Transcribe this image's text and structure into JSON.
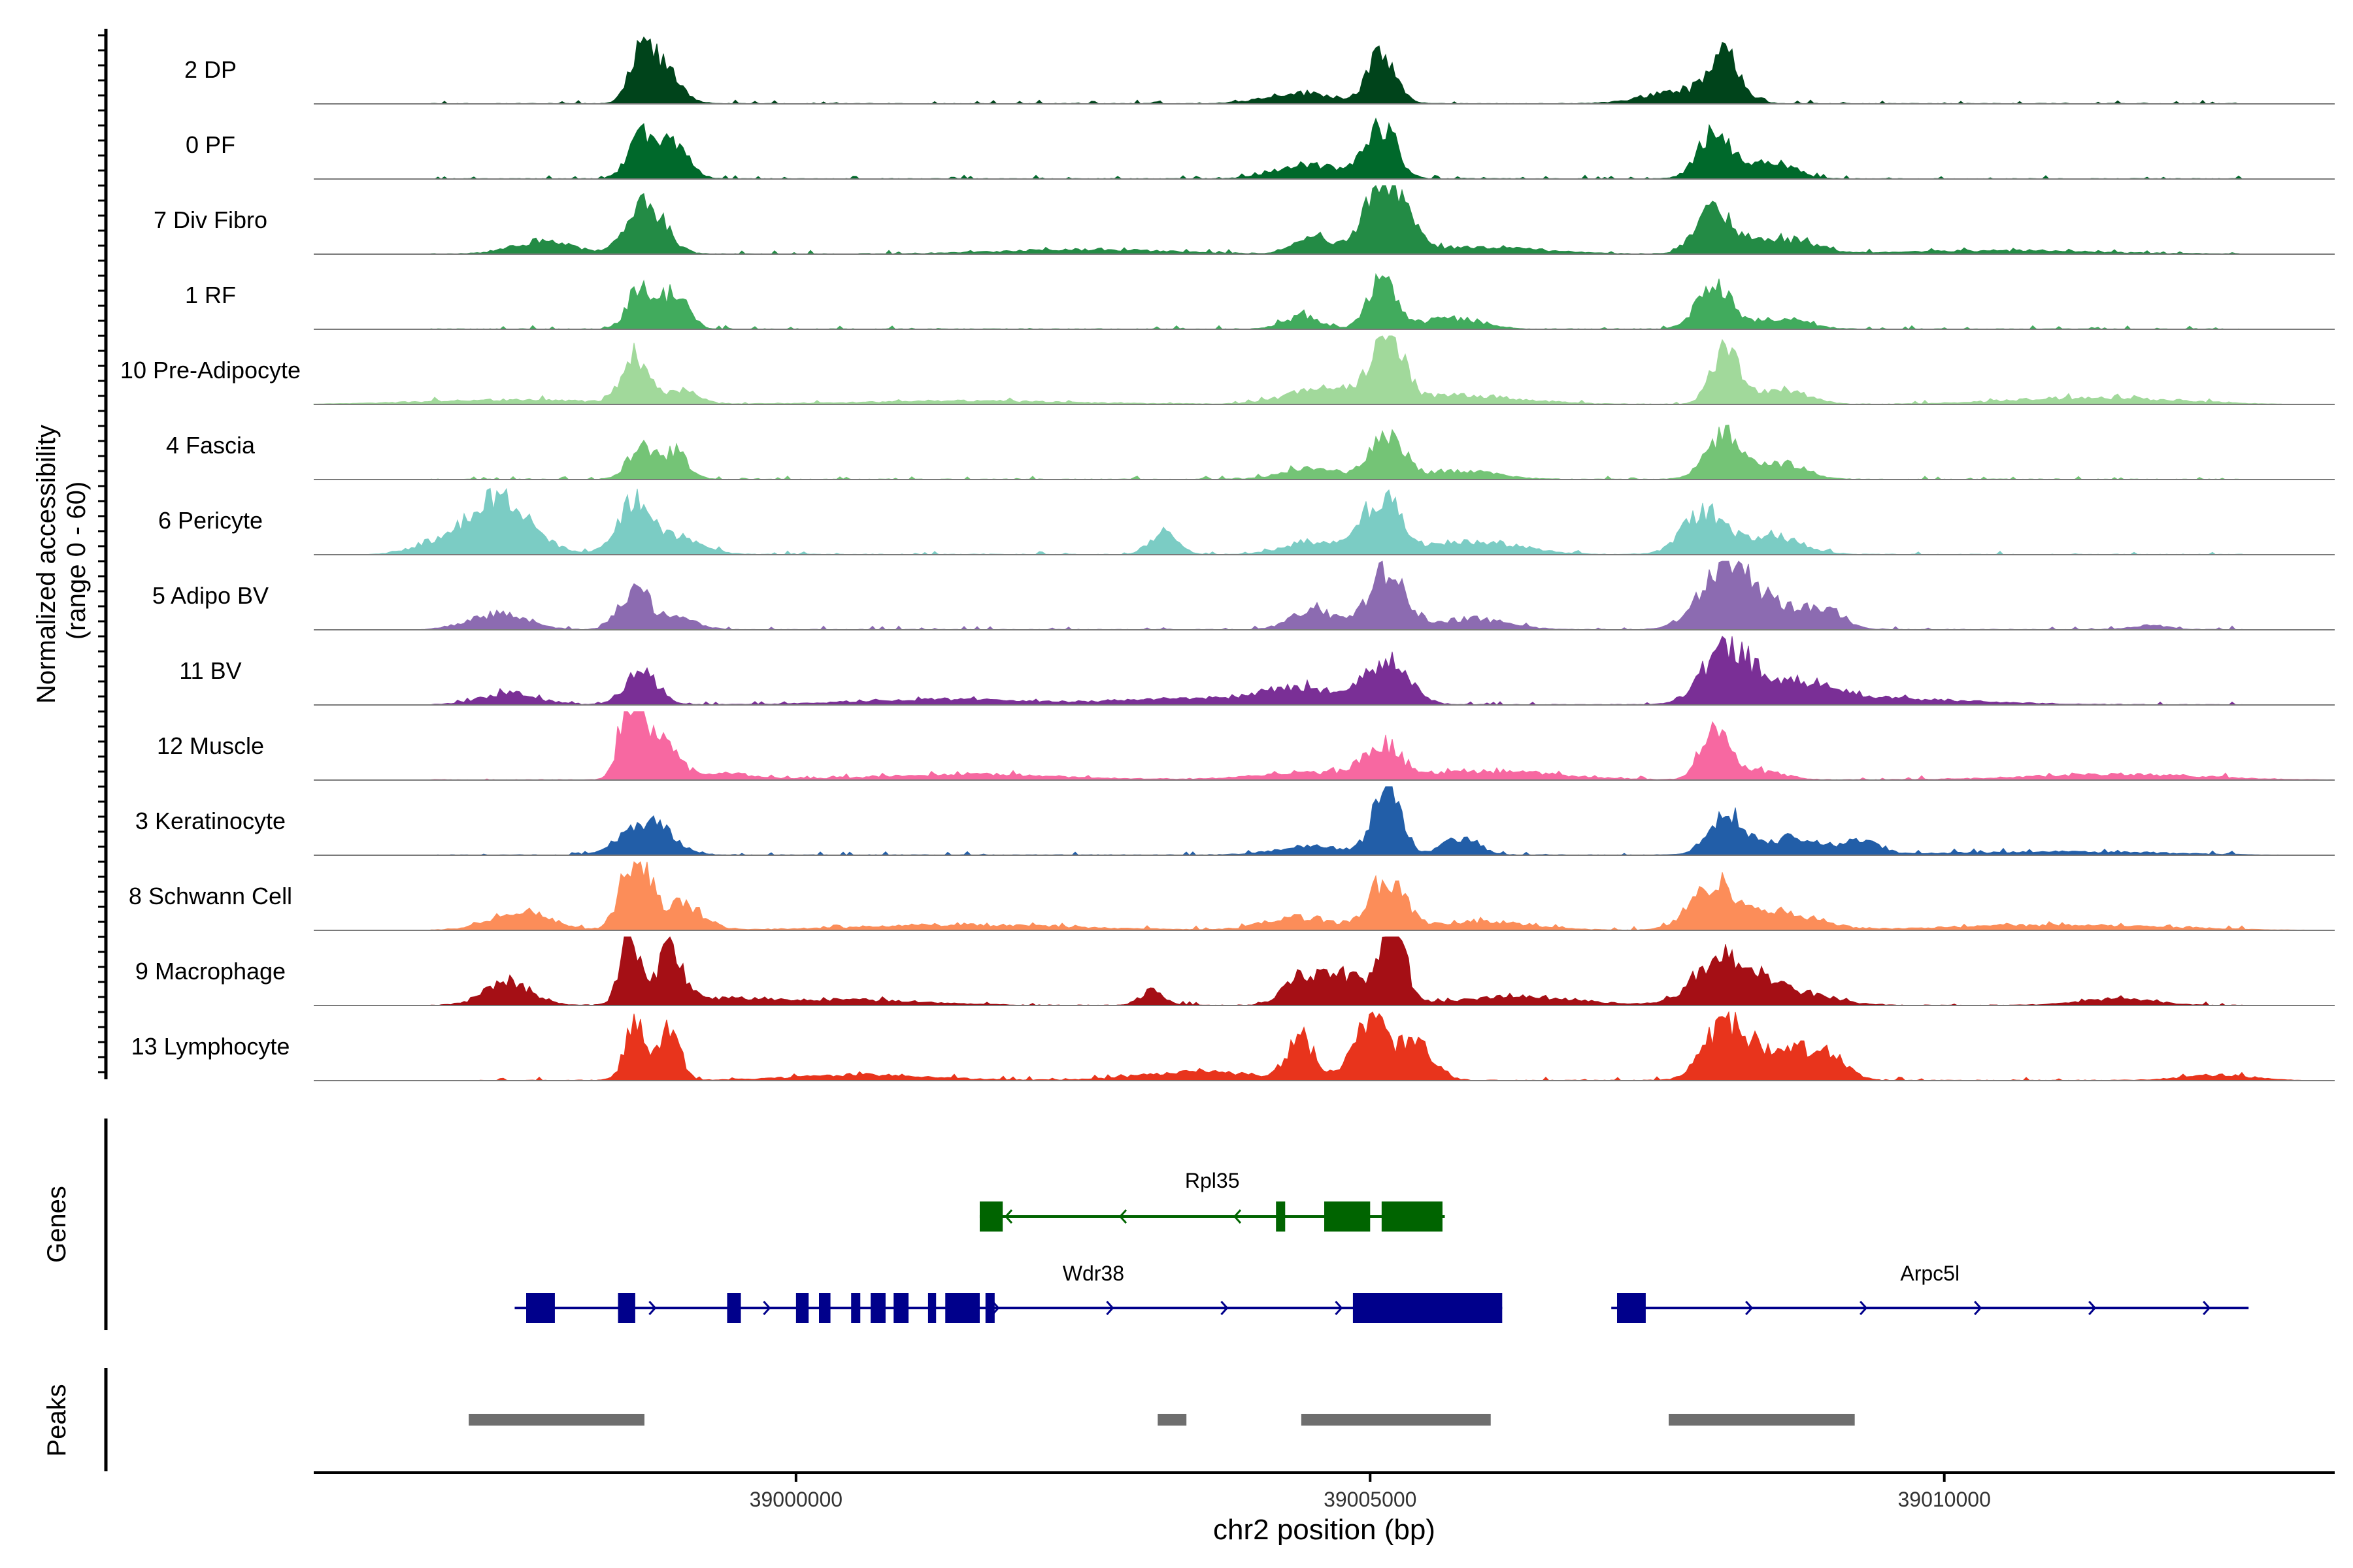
{
  "chart_data": {
    "type": "area",
    "title": "",
    "xlabel": "chr2 position (bp)",
    "ylabel": "Normalized accessibility\n(range 0 - 60)",
    "ylim": [
      0,
      60
    ],
    "xlim": [
      38995800,
      39013400
    ],
    "x_ticks": [
      39000000,
      39005000,
      39010000
    ],
    "x_tick_labels": [
      "39000000",
      "39005000",
      "39010000"
    ],
    "tracks": [
      {
        "name": "2 DP",
        "color": "#00441b",
        "noise": [
          38996800,
          39012600
        ],
        "peaks": [
          [
            38998650,
            100,
            40
          ],
          [
            38998850,
            140,
            32
          ],
          [
            39005100,
            120,
            45
          ],
          [
            39004400,
            300,
            10
          ],
          [
            39008100,
            130,
            42
          ],
          [
            39007700,
            300,
            12
          ]
        ]
      },
      {
        "name": "0 PF",
        "color": "#00692b",
        "noise": [
          38996800,
          39012600
        ],
        "peaks": [
          [
            38998650,
            110,
            42
          ],
          [
            38998950,
            120,
            36
          ],
          [
            39005100,
            130,
            48
          ],
          [
            39004500,
            300,
            12
          ],
          [
            39008000,
            140,
            45
          ],
          [
            39008500,
            200,
            15
          ]
        ]
      },
      {
        "name": "7 Div Fibro",
        "color": "#238b45",
        "noise": [
          38996800,
          39012600
        ],
        "peaks": [
          [
            38998700,
            160,
            46
          ],
          [
            38997800,
            250,
            12
          ],
          [
            39005150,
            180,
            70
          ],
          [
            39004500,
            150,
            18
          ],
          [
            39006000,
            500,
            6
          ],
          [
            39008000,
            160,
            40
          ],
          [
            39008600,
            250,
            14
          ],
          [
            39002500,
            700,
            4
          ],
          [
            39010500,
            800,
            3
          ]
        ]
      },
      {
        "name": "1 RF",
        "color": "#41ab5d",
        "noise": [
          38996800,
          39012600
        ],
        "peaks": [
          [
            38998650,
            110,
            40
          ],
          [
            38998950,
            110,
            34
          ],
          [
            39005100,
            120,
            44
          ],
          [
            39004400,
            150,
            12
          ],
          [
            39005700,
            250,
            10
          ],
          [
            39008000,
            150,
            40
          ],
          [
            39008600,
            200,
            10
          ]
        ]
      },
      {
        "name": "10 Pre-Adipocyte",
        "color": "#a1d99b",
        "noise": [
          38996800,
          39012600
        ],
        "peaks": [
          [
            38998600,
            110,
            45
          ],
          [
            38999000,
            140,
            12
          ],
          [
            39005150,
            130,
            70
          ],
          [
            39004600,
            300,
            15
          ],
          [
            39005800,
            500,
            8
          ],
          [
            39008100,
            120,
            52
          ],
          [
            39008600,
            200,
            14
          ],
          [
            39011300,
            700,
            6
          ],
          [
            38997500,
            800,
            4
          ],
          [
            39001500,
            900,
            3
          ]
        ]
      },
      {
        "name": "4 Fascia",
        "color": "#74c476",
        "noise": [
          38996800,
          39012600
        ],
        "peaks": [
          [
            38998650,
            110,
            30
          ],
          [
            38998950,
            110,
            24
          ],
          [
            39005150,
            140,
            42
          ],
          [
            39004500,
            250,
            10
          ],
          [
            39005800,
            300,
            8
          ],
          [
            39008100,
            160,
            44
          ],
          [
            39008600,
            200,
            14
          ]
        ]
      },
      {
        "name": "6 Pericyte",
        "color": "#7bccc4",
        "noise": [
          38996800,
          39012600
        ],
        "peaks": [
          [
            38997400,
            280,
            50
          ],
          [
            38998600,
            150,
            50
          ],
          [
            38999000,
            200,
            16
          ],
          [
            39003200,
            120,
            20
          ],
          [
            39005100,
            150,
            55
          ],
          [
            39004500,
            250,
            12
          ],
          [
            39005900,
            400,
            12
          ],
          [
            39007900,
            180,
            38
          ],
          [
            39008500,
            250,
            18
          ],
          [
            38996800,
            200,
            8
          ]
        ]
      },
      {
        "name": "5 Adipo BV",
        "color": "#8c6bb1",
        "noise": [
          38996800,
          39012600
        ],
        "peaks": [
          [
            38997400,
            250,
            14
          ],
          [
            38998600,
            130,
            38
          ],
          [
            38999000,
            150,
            10
          ],
          [
            39005150,
            160,
            55
          ],
          [
            39004500,
            180,
            20
          ],
          [
            39005900,
            300,
            10
          ],
          [
            39008100,
            220,
            62
          ],
          [
            39008600,
            250,
            20
          ],
          [
            39009000,
            150,
            14
          ],
          [
            39011800,
            150,
            4
          ]
        ]
      },
      {
        "name": "11 BV",
        "color": "#7a2f96",
        "noise": [
          38996800,
          39012600
        ],
        "peaks": [
          [
            38998650,
            140,
            30
          ],
          [
            38997500,
            250,
            10
          ],
          [
            39005150,
            180,
            42
          ],
          [
            39004400,
            300,
            14
          ],
          [
            39003500,
            700,
            6
          ],
          [
            39008100,
            200,
            50
          ],
          [
            39008700,
            350,
            20
          ],
          [
            39001200,
            700,
            5
          ],
          [
            39009500,
            800,
            5
          ]
        ]
      },
      {
        "name": "12 Muscle",
        "color": "#f768a1",
        "noise": [
          38996800,
          39012600
        ],
        "peaks": [
          [
            38998550,
            90,
            70
          ],
          [
            38998800,
            140,
            42
          ],
          [
            38999300,
            300,
            6
          ],
          [
            39005100,
            150,
            30
          ],
          [
            39004500,
            500,
            6
          ],
          [
            39006000,
            600,
            8
          ],
          [
            39008000,
            120,
            52
          ],
          [
            39008400,
            200,
            8
          ],
          [
            39001500,
            800,
            5
          ],
          [
            39011500,
            800,
            5
          ]
        ]
      },
      {
        "name": "3 Keratinocyte",
        "color": "#225ea8",
        "noise": [
          38996800,
          39012600
        ],
        "peaks": [
          [
            38998700,
            200,
            32
          ],
          [
            39005150,
            120,
            62
          ],
          [
            39004500,
            300,
            8
          ],
          [
            39005800,
            150,
            16
          ],
          [
            39008100,
            150,
            35
          ],
          [
            39008700,
            250,
            16
          ],
          [
            39009300,
            150,
            12
          ],
          [
            39011000,
            900,
            3
          ]
        ]
      },
      {
        "name": "8 Schwann Cell",
        "color": "#fc8d59",
        "noise": [
          38996800,
          39012600
        ],
        "peaks": [
          [
            38997600,
            250,
            18
          ],
          [
            38998600,
            120,
            70
          ],
          [
            38999000,
            180,
            24
          ],
          [
            39005150,
            150,
            48
          ],
          [
            39004400,
            300,
            12
          ],
          [
            39006000,
            400,
            8
          ],
          [
            39008000,
            200,
            42
          ],
          [
            39008600,
            300,
            16
          ],
          [
            39001500,
            900,
            5
          ],
          [
            39011000,
            900,
            5
          ]
        ]
      },
      {
        "name": "9 Macrophage",
        "color": "#a50f15",
        "noise": [
          38996800,
          39012600
        ],
        "peaks": [
          [
            38998550,
            80,
            68
          ],
          [
            38998900,
            110,
            50
          ],
          [
            38997500,
            200,
            22
          ],
          [
            38999300,
            400,
            6
          ],
          [
            39005200,
            100,
            82
          ],
          [
            39004800,
            200,
            28
          ],
          [
            39004400,
            150,
            26
          ],
          [
            39003100,
            100,
            14
          ],
          [
            39008100,
            250,
            45
          ],
          [
            39008700,
            300,
            12
          ],
          [
            39011500,
            300,
            6
          ],
          [
            39000500,
            600,
            5
          ],
          [
            39006300,
            500,
            8
          ]
        ]
      },
      {
        "name": "13 Lymphocyte",
        "color": "#e8341c",
        "noise": [
          38997200,
          39012600
        ],
        "peaks": [
          [
            38998600,
            90,
            50
          ],
          [
            38998900,
            90,
            48
          ],
          [
            39004400,
            120,
            38
          ],
          [
            39005000,
            150,
            52
          ],
          [
            39005400,
            150,
            36
          ],
          [
            39008100,
            180,
            55
          ],
          [
            39008600,
            200,
            32
          ],
          [
            39009000,
            150,
            24
          ],
          [
            39003500,
            500,
            8
          ],
          [
            39000600,
            600,
            5
          ],
          [
            39012400,
            300,
            5
          ]
        ]
      }
    ],
    "genes": [
      {
        "name": "Rpl35",
        "color": "#006400",
        "strand": "-",
        "start": 39001600,
        "end": 39005650,
        "row": 0,
        "exons": [
          [
            39001600,
            39001800
          ],
          [
            39004180,
            39004260
          ],
          [
            39004600,
            39005000
          ],
          [
            39005100,
            39005630
          ]
        ]
      },
      {
        "name": "Wdr38",
        "color": "#00008b",
        "strand": "+",
        "start": 38997550,
        "end": 39006150,
        "row": 1,
        "exons": [
          [
            38997650,
            38997900
          ],
          [
            38998450,
            38998600
          ],
          [
            38999400,
            38999520
          ],
          [
            39000000,
            39000110
          ],
          [
            39000200,
            39000300
          ],
          [
            39000480,
            39000560
          ],
          [
            39000650,
            39000780
          ],
          [
            39000850,
            39000980
          ],
          [
            39001150,
            39001220
          ],
          [
            39001300,
            39001600
          ],
          [
            39001650,
            39001730
          ],
          [
            39004850,
            39006150
          ]
        ]
      },
      {
        "name": "Arpc5l",
        "color": "#00008b",
        "strand": "+",
        "start": 39007100,
        "end": 39012650,
        "row": 1,
        "exons": [
          [
            39007150,
            39007400
          ]
        ]
      }
    ],
    "peaks_track": [
      [
        38997150,
        38998680
      ],
      [
        39003150,
        39003400
      ],
      [
        39004400,
        39006050
      ],
      [
        39007600,
        39009220
      ]
    ],
    "peaks_color": "#6e6e6e",
    "gene_track_label": "Genes",
    "peaks_track_label": "Peaks"
  }
}
